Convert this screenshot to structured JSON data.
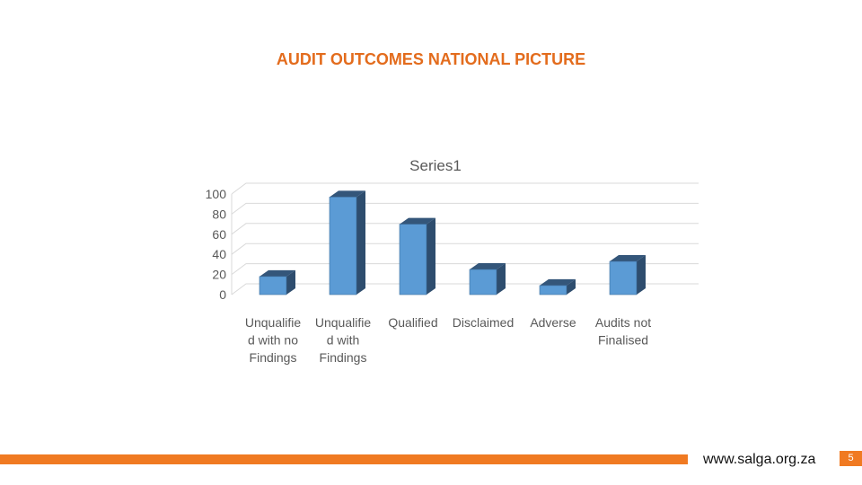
{
  "slide": {
    "title": "AUDIT OUTCOMES NATIONAL PICTURE",
    "footer_url": "www.salga.org.za",
    "page_number": "5",
    "accent_color": "#f07a22",
    "title_color": "#e36c1d"
  },
  "chart_data": {
    "type": "bar",
    "title": "Series1",
    "categories": [
      [
        "Unqualifie",
        "d with no",
        "Findings"
      ],
      [
        "Unqualifie",
        "d with",
        "Findings"
      ],
      [
        "Qualified"
      ],
      [
        "Disclaimed"
      ],
      [
        "Adverse"
      ],
      [
        "Audits not",
        "Finalised"
      ]
    ],
    "series": [
      {
        "values": [
          18,
          97,
          70,
          25,
          9,
          33
        ]
      }
    ],
    "ylim": [
      0,
      100
    ],
    "yticks": [
      0,
      20,
      40,
      60,
      80,
      100
    ],
    "grid": true,
    "bar_color": "#5b9bd5",
    "bar_side_color": "#2e4d6e",
    "bar_top_color": "#34567a"
  }
}
